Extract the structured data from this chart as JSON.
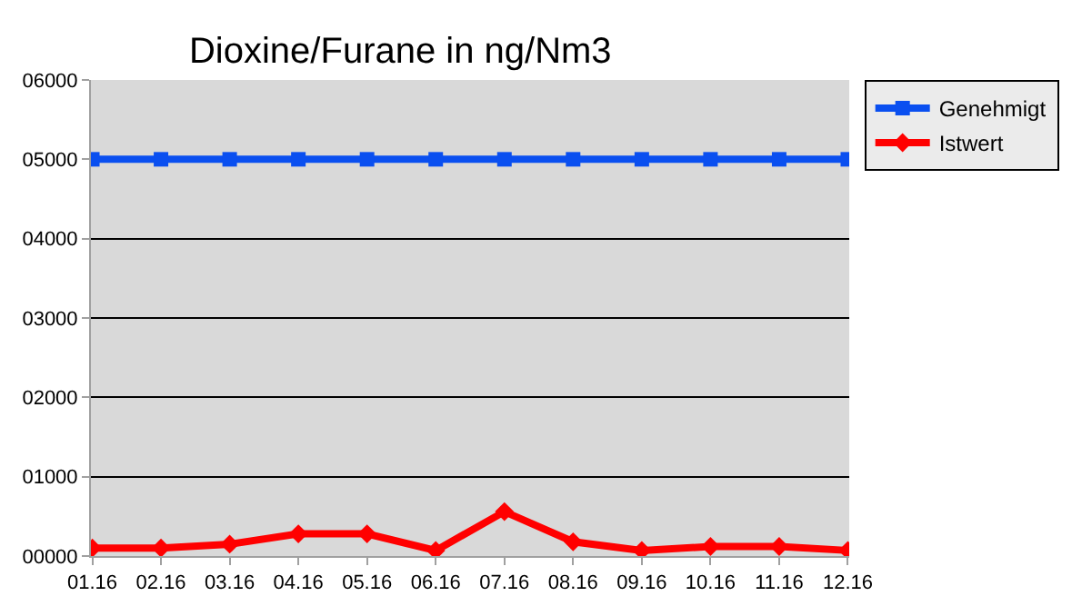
{
  "chart_data": {
    "type": "line",
    "title": "Dioxine/Furane in ng/Nm3",
    "categories": [
      "01.16",
      "02.16",
      "03.16",
      "04.16",
      "05.16",
      "06.16",
      "07.16",
      "08.16",
      "09.16",
      "10.16",
      "11.16",
      "12.16"
    ],
    "series": [
      {
        "name": "Genehmigt",
        "color": "#0a4ff0",
        "marker": "square",
        "values": [
          5000,
          5000,
          5000,
          5000,
          5000,
          5000,
          5000,
          5000,
          5000,
          5000,
          5000,
          5000
        ]
      },
      {
        "name": "Istwert",
        "color": "#ff0000",
        "marker": "diamond",
        "values": [
          100,
          100,
          150,
          280,
          280,
          70,
          560,
          180,
          70,
          120,
          120,
          70
        ]
      }
    ],
    "ylim": [
      0,
      6000
    ],
    "yticks": [
      {
        "value": 0,
        "label": "00000"
      },
      {
        "value": 1000,
        "label": "01000"
      },
      {
        "value": 2000,
        "label": "02000"
      },
      {
        "value": 3000,
        "label": "03000"
      },
      {
        "value": 4000,
        "label": "04000"
      },
      {
        "value": 5000,
        "label": "05000"
      },
      {
        "value": 6000,
        "label": "06000"
      }
    ],
    "grid": "y",
    "legend": "top right",
    "line_style": "solid"
  }
}
